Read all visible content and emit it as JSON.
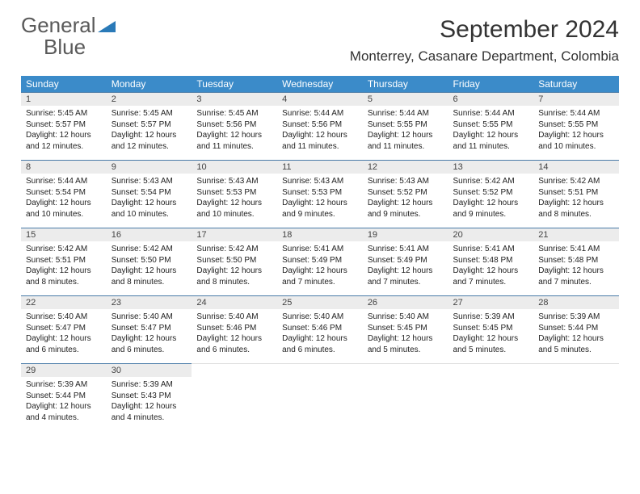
{
  "brand": {
    "name_part1": "General",
    "name_part2": "Blue",
    "accent": "#2a7ab8"
  },
  "title": "September 2024",
  "location": "Monterrey, Casanare Department, Colombia",
  "colors": {
    "header_bg": "#3b8bc9",
    "header_text": "#ffffff",
    "daynum_bg": "#ececec",
    "daynum_text": "#444444",
    "cell_border": "#4a7ba8",
    "body_text": "#222222",
    "page_bg": "#ffffff"
  },
  "typography": {
    "title_fontsize": 30,
    "location_fontsize": 17,
    "weekday_fontsize": 12,
    "daynum_fontsize": 11,
    "cell_fontsize": 10
  },
  "weekdays": [
    "Sunday",
    "Monday",
    "Tuesday",
    "Wednesday",
    "Thursday",
    "Friday",
    "Saturday"
  ],
  "weeks": [
    [
      {
        "n": "1",
        "l1": "Sunrise: 5:45 AM",
        "l2": "Sunset: 5:57 PM",
        "l3": "Daylight: 12 hours",
        "l4": "and 12 minutes."
      },
      {
        "n": "2",
        "l1": "Sunrise: 5:45 AM",
        "l2": "Sunset: 5:57 PM",
        "l3": "Daylight: 12 hours",
        "l4": "and 12 minutes."
      },
      {
        "n": "3",
        "l1": "Sunrise: 5:45 AM",
        "l2": "Sunset: 5:56 PM",
        "l3": "Daylight: 12 hours",
        "l4": "and 11 minutes."
      },
      {
        "n": "4",
        "l1": "Sunrise: 5:44 AM",
        "l2": "Sunset: 5:56 PM",
        "l3": "Daylight: 12 hours",
        "l4": "and 11 minutes."
      },
      {
        "n": "5",
        "l1": "Sunrise: 5:44 AM",
        "l2": "Sunset: 5:55 PM",
        "l3": "Daylight: 12 hours",
        "l4": "and 11 minutes."
      },
      {
        "n": "6",
        "l1": "Sunrise: 5:44 AM",
        "l2": "Sunset: 5:55 PM",
        "l3": "Daylight: 12 hours",
        "l4": "and 11 minutes."
      },
      {
        "n": "7",
        "l1": "Sunrise: 5:44 AM",
        "l2": "Sunset: 5:55 PM",
        "l3": "Daylight: 12 hours",
        "l4": "and 10 minutes."
      }
    ],
    [
      {
        "n": "8",
        "l1": "Sunrise: 5:44 AM",
        "l2": "Sunset: 5:54 PM",
        "l3": "Daylight: 12 hours",
        "l4": "and 10 minutes."
      },
      {
        "n": "9",
        "l1": "Sunrise: 5:43 AM",
        "l2": "Sunset: 5:54 PM",
        "l3": "Daylight: 12 hours",
        "l4": "and 10 minutes."
      },
      {
        "n": "10",
        "l1": "Sunrise: 5:43 AM",
        "l2": "Sunset: 5:53 PM",
        "l3": "Daylight: 12 hours",
        "l4": "and 10 minutes."
      },
      {
        "n": "11",
        "l1": "Sunrise: 5:43 AM",
        "l2": "Sunset: 5:53 PM",
        "l3": "Daylight: 12 hours",
        "l4": "and 9 minutes."
      },
      {
        "n": "12",
        "l1": "Sunrise: 5:43 AM",
        "l2": "Sunset: 5:52 PM",
        "l3": "Daylight: 12 hours",
        "l4": "and 9 minutes."
      },
      {
        "n": "13",
        "l1": "Sunrise: 5:42 AM",
        "l2": "Sunset: 5:52 PM",
        "l3": "Daylight: 12 hours",
        "l4": "and 9 minutes."
      },
      {
        "n": "14",
        "l1": "Sunrise: 5:42 AM",
        "l2": "Sunset: 5:51 PM",
        "l3": "Daylight: 12 hours",
        "l4": "and 8 minutes."
      }
    ],
    [
      {
        "n": "15",
        "l1": "Sunrise: 5:42 AM",
        "l2": "Sunset: 5:51 PM",
        "l3": "Daylight: 12 hours",
        "l4": "and 8 minutes."
      },
      {
        "n": "16",
        "l1": "Sunrise: 5:42 AM",
        "l2": "Sunset: 5:50 PM",
        "l3": "Daylight: 12 hours",
        "l4": "and 8 minutes."
      },
      {
        "n": "17",
        "l1": "Sunrise: 5:42 AM",
        "l2": "Sunset: 5:50 PM",
        "l3": "Daylight: 12 hours",
        "l4": "and 8 minutes."
      },
      {
        "n": "18",
        "l1": "Sunrise: 5:41 AM",
        "l2": "Sunset: 5:49 PM",
        "l3": "Daylight: 12 hours",
        "l4": "and 7 minutes."
      },
      {
        "n": "19",
        "l1": "Sunrise: 5:41 AM",
        "l2": "Sunset: 5:49 PM",
        "l3": "Daylight: 12 hours",
        "l4": "and 7 minutes."
      },
      {
        "n": "20",
        "l1": "Sunrise: 5:41 AM",
        "l2": "Sunset: 5:48 PM",
        "l3": "Daylight: 12 hours",
        "l4": "and 7 minutes."
      },
      {
        "n": "21",
        "l1": "Sunrise: 5:41 AM",
        "l2": "Sunset: 5:48 PM",
        "l3": "Daylight: 12 hours",
        "l4": "and 7 minutes."
      }
    ],
    [
      {
        "n": "22",
        "l1": "Sunrise: 5:40 AM",
        "l2": "Sunset: 5:47 PM",
        "l3": "Daylight: 12 hours",
        "l4": "and 6 minutes."
      },
      {
        "n": "23",
        "l1": "Sunrise: 5:40 AM",
        "l2": "Sunset: 5:47 PM",
        "l3": "Daylight: 12 hours",
        "l4": "and 6 minutes."
      },
      {
        "n": "24",
        "l1": "Sunrise: 5:40 AM",
        "l2": "Sunset: 5:46 PM",
        "l3": "Daylight: 12 hours",
        "l4": "and 6 minutes."
      },
      {
        "n": "25",
        "l1": "Sunrise: 5:40 AM",
        "l2": "Sunset: 5:46 PM",
        "l3": "Daylight: 12 hours",
        "l4": "and 6 minutes."
      },
      {
        "n": "26",
        "l1": "Sunrise: 5:40 AM",
        "l2": "Sunset: 5:45 PM",
        "l3": "Daylight: 12 hours",
        "l4": "and 5 minutes."
      },
      {
        "n": "27",
        "l1": "Sunrise: 5:39 AM",
        "l2": "Sunset: 5:45 PM",
        "l3": "Daylight: 12 hours",
        "l4": "and 5 minutes."
      },
      {
        "n": "28",
        "l1": "Sunrise: 5:39 AM",
        "l2": "Sunset: 5:44 PM",
        "l3": "Daylight: 12 hours",
        "l4": "and 5 minutes."
      }
    ],
    [
      {
        "n": "29",
        "l1": "Sunrise: 5:39 AM",
        "l2": "Sunset: 5:44 PM",
        "l3": "Daylight: 12 hours",
        "l4": "and 4 minutes."
      },
      {
        "n": "30",
        "l1": "Sunrise: 5:39 AM",
        "l2": "Sunset: 5:43 PM",
        "l3": "Daylight: 12 hours",
        "l4": "and 4 minutes."
      },
      null,
      null,
      null,
      null,
      null
    ]
  ]
}
